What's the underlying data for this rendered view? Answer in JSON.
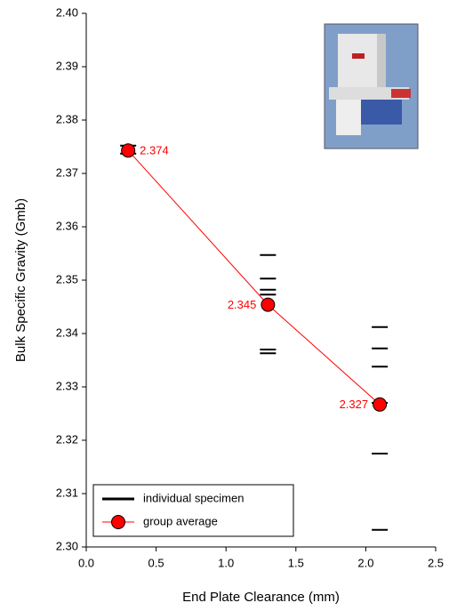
{
  "chart_data": {
    "type": "scatter",
    "xlabel": "End Plate Clearance (mm)",
    "ylabel": "Bulk Specific Gravity (Gmb)",
    "xlim": [
      0,
      2.5
    ],
    "ylim": [
      2.3,
      2.4
    ],
    "xticks": [
      {
        "value": 0,
        "label": "0.0"
      },
      0.5,
      {
        "value": 1,
        "label": "1.0"
      },
      1.5,
      {
        "value": 2,
        "label": "2.0"
      },
      2.5
    ],
    "yticks": [
      {
        "value": 2.3,
        "label": "2.30"
      },
      2.31,
      2.32,
      2.33,
      2.34,
      2.35,
      2.36,
      2.37,
      2.38,
      2.39,
      {
        "value": 2.4,
        "label": "2.40"
      }
    ],
    "legend_position": "lower left",
    "series": [
      {
        "name": "individual specimen",
        "color": "#000000",
        "marker": "dash",
        "x": [
          0.3,
          0.3,
          1.3,
          1.3,
          1.3,
          1.3,
          1.3,
          1.3,
          2.1,
          2.1,
          2.1,
          2.1,
          2.1,
          2.1
        ],
        "values": [
          2.3752,
          2.3737,
          2.3547,
          2.3503,
          2.3482,
          2.3473,
          2.337,
          2.3363,
          2.3412,
          2.3372,
          2.3338,
          2.327,
          2.3175,
          2.3032
        ]
      },
      {
        "name": "group average",
        "color": "#ff0000",
        "marker": "circle",
        "x": [
          0.3,
          1.3,
          2.1
        ],
        "values": [
          2.3743,
          2.3454,
          2.3267
        ],
        "value_labels": [
          "2.374",
          "2.345",
          "2.327"
        ]
      }
    ]
  }
}
